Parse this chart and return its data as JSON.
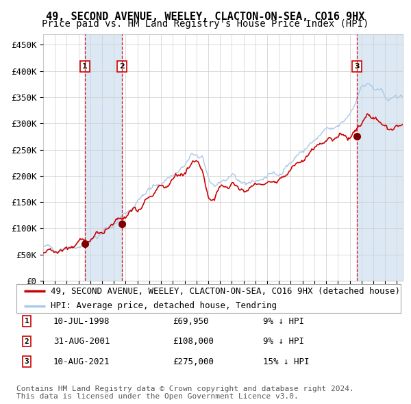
{
  "title": "49, SECOND AVENUE, WEELEY, CLACTON-ON-SEA, CO16 9HX",
  "subtitle": "Price paid vs. HM Land Registry's House Price Index (HPI)",
  "ylim": [
    0,
    470000
  ],
  "yticks": [
    0,
    50000,
    100000,
    150000,
    200000,
    250000,
    300000,
    350000,
    400000,
    450000
  ],
  "ytick_labels": [
    "£0",
    "£50K",
    "£100K",
    "£150K",
    "£200K",
    "£250K",
    "£300K",
    "£350K",
    "£400K",
    "£450K"
  ],
  "xlim_start": 1995.0,
  "xlim_end": 2025.5,
  "sale_color": "#cc0000",
  "hpi_color": "#aac8e8",
  "bg_color": "#ffffff",
  "grid_color": "#cccccc",
  "annotation_band_color": "#dce9f5",
  "sale_marker_color": "#800000",
  "transactions": [
    {
      "num": 1,
      "date_label": "10-JUL-1998",
      "date_x": 1998.53,
      "price": 69950,
      "pct": "9%",
      "direction": "↓"
    },
    {
      "num": 2,
      "date_label": "31-AUG-2001",
      "date_x": 2001.67,
      "price": 108000,
      "pct": "9%",
      "direction": "↓"
    },
    {
      "num": 3,
      "date_label": "10-AUG-2021",
      "date_x": 2021.61,
      "price": 275000,
      "pct": "15%",
      "direction": "↓"
    }
  ],
  "legend_entries": [
    "49, SECOND AVENUE, WEELEY, CLACTON-ON-SEA, CO16 9HX (detached house)",
    "HPI: Average price, detached house, Tendring"
  ],
  "footer_line1": "Contains HM Land Registry data © Crown copyright and database right 2024.",
  "footer_line2": "This data is licensed under the Open Government Licence v3.0.",
  "title_fontsize": 11,
  "subtitle_fontsize": 10,
  "tick_fontsize": 9,
  "legend_fontsize": 9,
  "footer_fontsize": 8,
  "hpi_waypoints_x": [
    1995.0,
    1996.0,
    1997.0,
    1998.0,
    1999.0,
    2000.0,
    2001.0,
    2002.0,
    2003.0,
    2004.0,
    2005.0,
    2006.0,
    2007.0,
    2007.5,
    2008.0,
    2008.5,
    2009.0,
    2009.5,
    2010.0,
    2011.0,
    2012.0,
    2013.0,
    2014.0,
    2015.0,
    2016.0,
    2017.0,
    2018.0,
    2019.0,
    2020.0,
    2021.0,
    2021.5,
    2022.0,
    2022.5,
    2023.0,
    2023.5,
    2024.0,
    2024.5,
    2025.5
  ],
  "hpi_waypoints_y": [
    62000,
    63500,
    65000,
    68000,
    76000,
    90000,
    108000,
    130000,
    152000,
    172000,
    188000,
    202000,
    218000,
    235000,
    240000,
    230000,
    195000,
    183000,
    190000,
    192000,
    188000,
    190000,
    198000,
    208000,
    225000,
    248000,
    265000,
    285000,
    292000,
    320000,
    345000,
    370000,
    375000,
    365000,
    358000,
    352000,
    348000,
    350000
  ],
  "sale_waypoints_x": [
    1995.0,
    1996.0,
    1997.0,
    1998.0,
    1999.0,
    2000.0,
    2001.0,
    2002.0,
    2003.0,
    2004.0,
    2005.0,
    2006.0,
    2007.0,
    2007.5,
    2008.0,
    2008.5,
    2009.0,
    2009.5,
    2010.0,
    2011.0,
    2012.0,
    2013.0,
    2014.0,
    2015.0,
    2016.0,
    2017.0,
    2018.0,
    2019.0,
    2020.0,
    2021.0,
    2021.5,
    2022.0,
    2022.5,
    2023.0,
    2023.5,
    2024.0,
    2024.5,
    2025.5
  ],
  "sale_waypoints_y": [
    55000,
    56000,
    58000,
    68000,
    82000,
    95000,
    108000,
    125000,
    142000,
    162000,
    178000,
    192000,
    205000,
    218000,
    218000,
    210000,
    158000,
    155000,
    180000,
    180000,
    176000,
    177000,
    186000,
    196000,
    213000,
    235000,
    252000,
    270000,
    275000,
    275000,
    278000,
    300000,
    320000,
    310000,
    302000,
    298000,
    295000,
    300000
  ]
}
